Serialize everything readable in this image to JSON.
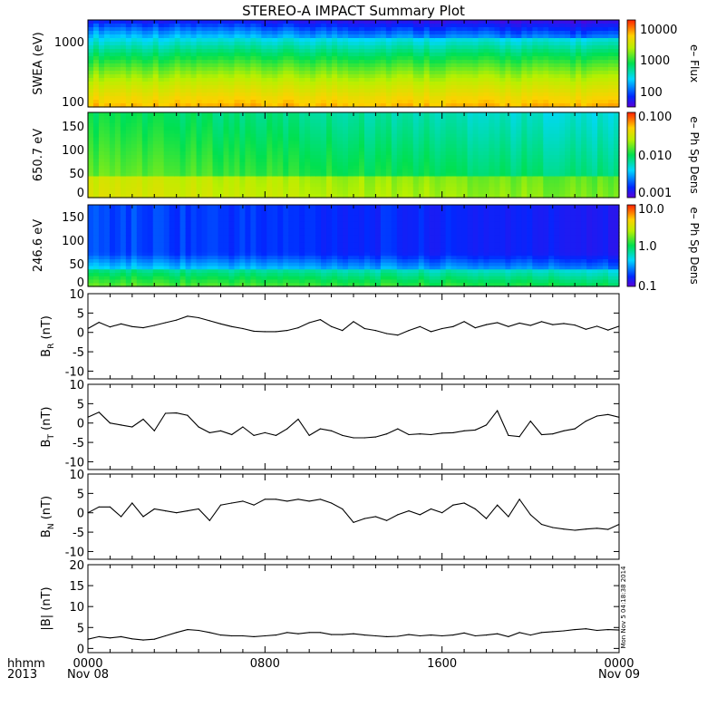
{
  "title": "STEREO-A IMPACT Summary Plot",
  "stamp": "Mon Nov  5 04:18:38 2014",
  "x_axis": {
    "hdr1": "hhmm",
    "hdr2": "2013",
    "ticks": [
      {
        "t": 0,
        "l1": "0000",
        "l2": "Nov 08"
      },
      {
        "t": 8,
        "l1": "0800",
        "l2": ""
      },
      {
        "t": 16,
        "l1": "1600",
        "l2": ""
      },
      {
        "t": 24,
        "l1": "0000",
        "l2": "Nov 09"
      }
    ]
  },
  "spectrograms": [
    {
      "id": "swea",
      "ylabel": "SWEA (eV)",
      "ytick_labels": [
        "1000",
        "100"
      ],
      "cbar_label": "e– Flux",
      "cbar_tick_labels": [
        "10000",
        "1000",
        "100"
      ],
      "scale": "log"
    },
    {
      "id": "pad650",
      "ylabel": "650.7 eV",
      "ytick_labels": [
        "150",
        "100",
        "50",
        "0"
      ],
      "cbar_label": "e– Ph Sp Dens",
      "cbar_tick_labels": [
        "0.100",
        "0.010",
        "0.001"
      ],
      "scale": "log"
    },
    {
      "id": "pad246",
      "ylabel": "246.6 eV",
      "ytick_labels": [
        "150",
        "100",
        "50",
        "0"
      ],
      "cbar_label": "e– Ph Sp Dens",
      "cbar_tick_labels": [
        "10.0",
        "1.0",
        "0.1"
      ],
      "scale": "log"
    }
  ],
  "chart_data": [
    {
      "type": "line",
      "id": "br",
      "ylabel": "B_R (nT)",
      "ylim": [
        -12,
        10
      ],
      "yticks": [
        10,
        5,
        0,
        -5,
        -10
      ],
      "x": [
        0,
        0.5,
        1,
        1.5,
        2,
        2.5,
        3,
        3.5,
        4,
        4.5,
        5,
        5.5,
        6,
        6.5,
        7,
        7.5,
        8,
        8.5,
        9,
        9.5,
        10,
        10.5,
        11,
        11.5,
        12,
        12.5,
        13,
        13.5,
        14,
        14.5,
        15,
        15.5,
        16,
        16.5,
        17,
        17.5,
        18,
        18.5,
        19,
        19.5,
        20,
        20.5,
        21,
        21.5,
        22,
        22.5,
        23,
        23.5,
        24
      ],
      "y": [
        1.0,
        2.6,
        1.4,
        2.2,
        1.5,
        1.2,
        1.8,
        2.5,
        3.2,
        4.2,
        3.8,
        3.0,
        2.2,
        1.5,
        1.0,
        0.3,
        0.2,
        0.2,
        0.5,
        1.2,
        2.5,
        3.3,
        1.5,
        0.5,
        2.8,
        1.0,
        0.5,
        -0.3,
        -0.7,
        0.5,
        1.5,
        0.2,
        1.0,
        1.5,
        2.8,
        1.2,
        2.0,
        2.5,
        1.5,
        2.4,
        1.8,
        2.8,
        2.0,
        2.3,
        1.9,
        0.8,
        1.6,
        0.6,
        1.6
      ]
    },
    {
      "type": "line",
      "id": "bt",
      "ylabel": "B_T (nT)",
      "ylim": [
        -12,
        10
      ],
      "yticks": [
        10,
        5,
        0,
        -5,
        -10
      ],
      "x": [
        0,
        0.5,
        1,
        1.5,
        2,
        2.5,
        3,
        3.5,
        4,
        4.5,
        5,
        5.5,
        6,
        6.5,
        7,
        7.5,
        8,
        8.5,
        9,
        9.5,
        10,
        10.5,
        11,
        11.5,
        12,
        12.5,
        13,
        13.5,
        14,
        14.5,
        15,
        15.5,
        16,
        16.5,
        17,
        17.5,
        18,
        18.5,
        19,
        19.5,
        20,
        20.5,
        21,
        21.5,
        22,
        22.5,
        23,
        23.5,
        24
      ],
      "y": [
        1.5,
        2.8,
        0.0,
        -0.5,
        -1.0,
        1.0,
        -2.0,
        2.5,
        2.6,
        2.0,
        -1.0,
        -2.5,
        -2.0,
        -3.0,
        -1.0,
        -3.2,
        -2.5,
        -3.2,
        -1.5,
        1.0,
        -3.2,
        -1.5,
        -2.0,
        -3.2,
        -3.8,
        -3.8,
        -3.6,
        -2.8,
        -1.5,
        -3.0,
        -2.8,
        -3.0,
        -2.6,
        -2.5,
        -2.0,
        -1.8,
        -0.5,
        3.2,
        -3.2,
        -3.5,
        0.5,
        -3.0,
        -2.8,
        -2.0,
        -1.5,
        0.5,
        1.8,
        2.2,
        1.5
      ]
    },
    {
      "type": "line",
      "id": "bn",
      "ylabel": "B_N (nT)",
      "ylim": [
        -12,
        10
      ],
      "yticks": [
        10,
        5,
        0,
        -5,
        -10
      ],
      "x": [
        0,
        0.5,
        1,
        1.5,
        2,
        2.5,
        3,
        3.5,
        4,
        4.5,
        5,
        5.5,
        6,
        6.5,
        7,
        7.5,
        8,
        8.5,
        9,
        9.5,
        10,
        10.5,
        11,
        11.5,
        12,
        12.5,
        13,
        13.5,
        14,
        14.5,
        15,
        15.5,
        16,
        16.5,
        17,
        17.5,
        18,
        18.5,
        19,
        19.5,
        20,
        20.5,
        21,
        21.5,
        22,
        22.5,
        23,
        23.5,
        24
      ],
      "y": [
        0.0,
        1.5,
        1.5,
        -1.0,
        2.5,
        -1.0,
        1.0,
        0.5,
        0.0,
        0.5,
        1.0,
        -2.0,
        2.0,
        2.5,
        3.0,
        2.0,
        3.5,
        3.5,
        3.0,
        3.5,
        3.0,
        3.5,
        2.5,
        1.0,
        -2.5,
        -1.5,
        -1.0,
        -2.0,
        -0.5,
        0.5,
        -0.5,
        1.0,
        0.0,
        2.0,
        2.5,
        1.0,
        -1.5,
        2.0,
        -1.0,
        3.5,
        -0.5,
        -3.0,
        -3.8,
        -4.2,
        -4.5,
        -4.2,
        -4.0,
        -4.3,
        -3.0
      ]
    },
    {
      "type": "line",
      "id": "bmag",
      "ylabel": "|B| (nT)",
      "ylim": [
        -1,
        20
      ],
      "yticks": [
        20,
        15,
        10,
        5,
        0
      ],
      "x": [
        0,
        0.5,
        1,
        1.5,
        2,
        2.5,
        3,
        3.5,
        4,
        4.5,
        5,
        5.5,
        6,
        6.5,
        7,
        7.5,
        8,
        8.5,
        9,
        9.5,
        10,
        10.5,
        11,
        11.5,
        12,
        12.5,
        13,
        13.5,
        14,
        14.5,
        15,
        15.5,
        16,
        16.5,
        17,
        17.5,
        18,
        18.5,
        19,
        19.5,
        20,
        20.5,
        21,
        21.5,
        22,
        22.5,
        23,
        23.5,
        24
      ],
      "y": [
        2.2,
        2.8,
        2.5,
        2.8,
        2.3,
        2.0,
        2.2,
        3.0,
        3.8,
        4.5,
        4.3,
        3.8,
        3.2,
        3.0,
        3.0,
        2.8,
        3.0,
        3.2,
        3.8,
        3.5,
        3.8,
        3.8,
        3.3,
        3.3,
        3.5,
        3.2,
        3.0,
        2.8,
        2.9,
        3.3,
        3.0,
        3.2,
        3.0,
        3.2,
        3.7,
        3.0,
        3.2,
        3.5,
        2.8,
        3.8,
        3.2,
        3.8,
        4.0,
        4.2,
        4.5,
        4.7,
        4.3,
        4.5,
        4.4
      ]
    }
  ]
}
